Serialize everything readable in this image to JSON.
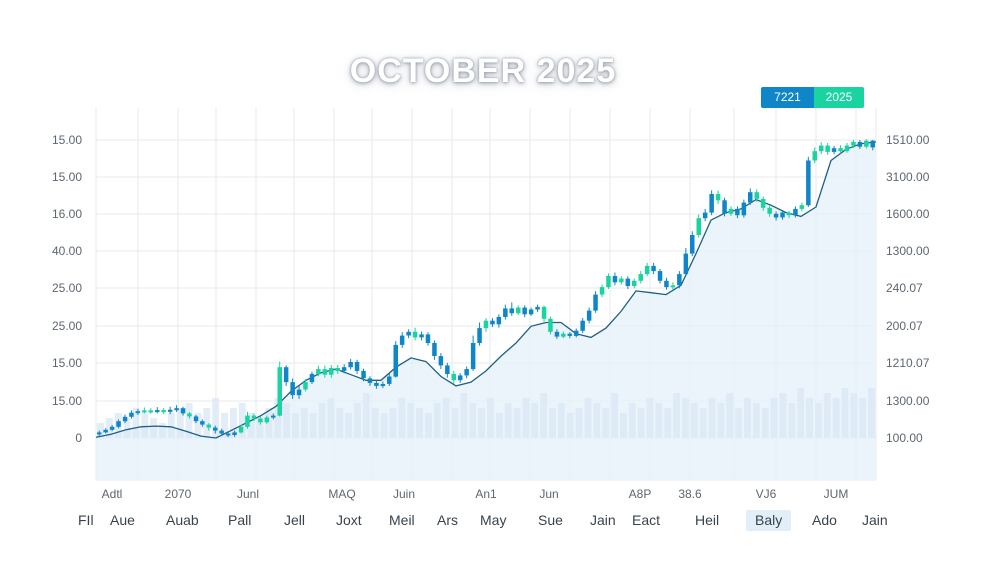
{
  "title": "OCTOBER 2025",
  "badges": [
    {
      "label": "7221",
      "color": "#0e86c8"
    },
    {
      "label": "2025",
      "color": "#19d3a0"
    }
  ],
  "chart_data": {
    "type": "candlestick",
    "title": "OCTOBER 2025",
    "left_axis_labels": [
      "15.00",
      "15.00",
      "16.00",
      "40.00",
      "25.00",
      "25.00",
      "15.00",
      "15.00",
      "0"
    ],
    "right_axis_labels": [
      "1510.00",
      "3100.00",
      "1600.00",
      "1300.00",
      "240.07",
      "200.07",
      "1210.07",
      "1300.00",
      "100.00"
    ],
    "x_axis_labels": [
      "Adtl",
      "2070",
      "Junl",
      "MAQ",
      "Juin",
      "An1",
      "Jun",
      "A8P",
      "38.6",
      "VJ6",
      "JUM"
    ],
    "y_range_left": [
      0,
      8
    ],
    "grid": true,
    "candles": [
      {
        "o": 0.1,
        "c": 0.15,
        "h": 0.2,
        "l": 0.05,
        "up": false
      },
      {
        "o": 0.15,
        "c": 0.22,
        "h": 0.26,
        "l": 0.12,
        "up": false
      },
      {
        "o": 0.22,
        "c": 0.3,
        "h": 0.35,
        "l": 0.18,
        "up": false
      },
      {
        "o": 0.3,
        "c": 0.45,
        "h": 0.5,
        "l": 0.26,
        "up": false
      },
      {
        "o": 0.45,
        "c": 0.57,
        "h": 0.63,
        "l": 0.4,
        "up": false
      },
      {
        "o": 0.57,
        "c": 0.68,
        "h": 0.74,
        "l": 0.52,
        "up": false
      },
      {
        "o": 0.68,
        "c": 0.72,
        "h": 0.78,
        "l": 0.62,
        "up": false
      },
      {
        "o": 0.72,
        "c": 0.74,
        "h": 0.82,
        "l": 0.66,
        "up": true
      },
      {
        "o": 0.74,
        "c": 0.72,
        "h": 0.8,
        "l": 0.65,
        "up": true
      },
      {
        "o": 0.72,
        "c": 0.75,
        "h": 0.83,
        "l": 0.66,
        "up": false
      },
      {
        "o": 0.75,
        "c": 0.7,
        "h": 0.8,
        "l": 0.64,
        "up": true
      },
      {
        "o": 0.7,
        "c": 0.76,
        "h": 0.84,
        "l": 0.64,
        "up": false
      },
      {
        "o": 0.76,
        "c": 0.8,
        "h": 0.88,
        "l": 0.7,
        "up": false
      },
      {
        "o": 0.8,
        "c": 0.66,
        "h": 0.84,
        "l": 0.6,
        "up": false
      },
      {
        "o": 0.66,
        "c": 0.58,
        "h": 0.7,
        "l": 0.52,
        "up": true
      },
      {
        "o": 0.58,
        "c": 0.45,
        "h": 0.62,
        "l": 0.4,
        "up": false
      },
      {
        "o": 0.45,
        "c": 0.36,
        "h": 0.5,
        "l": 0.3,
        "up": false
      },
      {
        "o": 0.36,
        "c": 0.28,
        "h": 0.4,
        "l": 0.2,
        "up": true
      },
      {
        "o": 0.28,
        "c": 0.2,
        "h": 0.33,
        "l": 0.12,
        "up": false
      },
      {
        "o": 0.2,
        "c": 0.12,
        "h": 0.25,
        "l": 0.06,
        "up": false
      },
      {
        "o": 0.12,
        "c": 0.08,
        "h": 0.16,
        "l": 0.02,
        "up": false
      },
      {
        "o": 0.08,
        "c": 0.15,
        "h": 0.2,
        "l": 0.03,
        "up": false
      },
      {
        "o": 0.15,
        "c": 0.3,
        "h": 0.35,
        "l": 0.12,
        "up": true
      },
      {
        "o": 0.3,
        "c": 0.6,
        "h": 0.7,
        "l": 0.25,
        "up": true
      },
      {
        "o": 0.6,
        "c": 0.52,
        "h": 0.66,
        "l": 0.46,
        "up": true
      },
      {
        "o": 0.52,
        "c": 0.42,
        "h": 0.58,
        "l": 0.36,
        "up": true
      },
      {
        "o": 0.42,
        "c": 0.55,
        "h": 0.6,
        "l": 0.38,
        "up": true
      },
      {
        "o": 0.55,
        "c": 0.6,
        "h": 0.66,
        "l": 0.5,
        "up": false
      },
      {
        "o": 0.6,
        "c": 1.9,
        "h": 2.05,
        "l": 0.58,
        "up": true
      },
      {
        "o": 1.9,
        "c": 1.5,
        "h": 1.95,
        "l": 1.4,
        "up": false
      },
      {
        "o": 1.5,
        "c": 1.15,
        "h": 1.6,
        "l": 1.05,
        "up": false
      },
      {
        "o": 1.15,
        "c": 1.3,
        "h": 1.4,
        "l": 1.05,
        "up": false
      },
      {
        "o": 1.3,
        "c": 1.5,
        "h": 1.58,
        "l": 1.25,
        "up": true
      },
      {
        "o": 1.5,
        "c": 1.72,
        "h": 1.78,
        "l": 1.45,
        "up": false
      },
      {
        "o": 1.72,
        "c": 1.85,
        "h": 1.94,
        "l": 1.66,
        "up": true
      },
      {
        "o": 1.85,
        "c": 1.7,
        "h": 1.95,
        "l": 1.62,
        "up": true
      },
      {
        "o": 1.7,
        "c": 1.88,
        "h": 1.96,
        "l": 1.62,
        "up": true
      },
      {
        "o": 1.88,
        "c": 1.8,
        "h": 1.96,
        "l": 1.72,
        "up": true
      },
      {
        "o": 1.8,
        "c": 1.9,
        "h": 1.98,
        "l": 1.74,
        "up": false
      },
      {
        "o": 1.9,
        "c": 2.04,
        "h": 2.12,
        "l": 1.84,
        "up": false
      },
      {
        "o": 2.04,
        "c": 1.8,
        "h": 2.1,
        "l": 1.72,
        "up": false
      },
      {
        "o": 1.8,
        "c": 1.6,
        "h": 1.86,
        "l": 1.52,
        "up": false
      },
      {
        "o": 1.6,
        "c": 1.48,
        "h": 1.66,
        "l": 1.4,
        "up": false
      },
      {
        "o": 1.48,
        "c": 1.4,
        "h": 1.54,
        "l": 1.32,
        "up": false
      },
      {
        "o": 1.4,
        "c": 1.45,
        "h": 1.52,
        "l": 1.34,
        "up": false
      },
      {
        "o": 1.45,
        "c": 1.65,
        "h": 1.72,
        "l": 1.4,
        "up": false
      },
      {
        "o": 1.65,
        "c": 2.5,
        "h": 2.6,
        "l": 1.62,
        "up": false
      },
      {
        "o": 2.5,
        "c": 2.75,
        "h": 2.84,
        "l": 2.42,
        "up": false
      },
      {
        "o": 2.75,
        "c": 2.85,
        "h": 2.92,
        "l": 2.68,
        "up": false
      },
      {
        "o": 2.85,
        "c": 2.7,
        "h": 2.96,
        "l": 2.62,
        "up": true
      },
      {
        "o": 2.7,
        "c": 2.78,
        "h": 2.86,
        "l": 2.62,
        "up": false
      },
      {
        "o": 2.78,
        "c": 2.55,
        "h": 2.84,
        "l": 2.48,
        "up": false
      },
      {
        "o": 2.55,
        "c": 2.2,
        "h": 2.62,
        "l": 2.1,
        "up": false
      },
      {
        "o": 2.2,
        "c": 1.95,
        "h": 2.28,
        "l": 1.85,
        "up": false
      },
      {
        "o": 1.95,
        "c": 1.72,
        "h": 2.02,
        "l": 1.62,
        "up": false
      },
      {
        "o": 1.72,
        "c": 1.55,
        "h": 1.8,
        "l": 1.45,
        "up": true
      },
      {
        "o": 1.55,
        "c": 1.68,
        "h": 1.74,
        "l": 1.48,
        "up": false
      },
      {
        "o": 1.68,
        "c": 1.85,
        "h": 1.92,
        "l": 1.6,
        "up": false
      },
      {
        "o": 1.85,
        "c": 2.55,
        "h": 2.75,
        "l": 1.8,
        "up": false
      },
      {
        "o": 2.55,
        "c": 2.95,
        "h": 3.1,
        "l": 2.48,
        "up": false
      },
      {
        "o": 2.95,
        "c": 3.15,
        "h": 3.22,
        "l": 2.85,
        "up": true
      },
      {
        "o": 3.15,
        "c": 3.05,
        "h": 3.22,
        "l": 2.98,
        "up": false
      },
      {
        "o": 3.05,
        "c": 3.25,
        "h": 3.32,
        "l": 2.96,
        "up": false
      },
      {
        "o": 3.25,
        "c": 3.48,
        "h": 3.58,
        "l": 3.18,
        "up": false
      },
      {
        "o": 3.48,
        "c": 3.35,
        "h": 3.64,
        "l": 3.28,
        "up": false
      },
      {
        "o": 3.35,
        "c": 3.5,
        "h": 3.56,
        "l": 3.3,
        "up": true
      },
      {
        "o": 3.5,
        "c": 3.32,
        "h": 3.56,
        "l": 3.24,
        "up": false
      },
      {
        "o": 3.32,
        "c": 3.45,
        "h": 3.5,
        "l": 3.28,
        "up": false
      },
      {
        "o": 3.45,
        "c": 3.52,
        "h": 3.58,
        "l": 3.38,
        "up": false
      },
      {
        "o": 3.52,
        "c": 3.2,
        "h": 3.56,
        "l": 3.12,
        "up": true
      },
      {
        "o": 3.2,
        "c": 2.85,
        "h": 3.26,
        "l": 2.78,
        "up": true
      },
      {
        "o": 2.85,
        "c": 2.72,
        "h": 2.92,
        "l": 2.66,
        "up": false
      },
      {
        "o": 2.72,
        "c": 2.8,
        "h": 2.86,
        "l": 2.68,
        "up": true
      },
      {
        "o": 2.8,
        "c": 2.74,
        "h": 2.84,
        "l": 2.68,
        "up": false
      },
      {
        "o": 2.74,
        "c": 2.88,
        "h": 2.94,
        "l": 2.7,
        "up": false
      },
      {
        "o": 2.88,
        "c": 3.15,
        "h": 3.22,
        "l": 2.82,
        "up": false
      },
      {
        "o": 3.15,
        "c": 3.42,
        "h": 3.5,
        "l": 3.08,
        "up": false
      },
      {
        "o": 3.42,
        "c": 3.85,
        "h": 3.94,
        "l": 3.36,
        "up": false
      },
      {
        "o": 3.85,
        "c": 4.05,
        "h": 4.12,
        "l": 3.78,
        "up": true
      },
      {
        "o": 4.05,
        "c": 4.35,
        "h": 4.42,
        "l": 4.0,
        "up": true
      },
      {
        "o": 4.35,
        "c": 4.18,
        "h": 4.44,
        "l": 4.1,
        "up": false
      },
      {
        "o": 4.18,
        "c": 4.28,
        "h": 4.34,
        "l": 4.12,
        "up": true
      },
      {
        "o": 4.28,
        "c": 4.08,
        "h": 4.34,
        "l": 4.0,
        "up": false
      },
      {
        "o": 4.08,
        "c": 4.22,
        "h": 4.28,
        "l": 4.02,
        "up": true
      },
      {
        "o": 4.22,
        "c": 4.4,
        "h": 4.48,
        "l": 4.15,
        "up": true
      },
      {
        "o": 4.4,
        "c": 4.62,
        "h": 4.7,
        "l": 4.34,
        "up": true
      },
      {
        "o": 4.62,
        "c": 4.48,
        "h": 4.7,
        "l": 4.4,
        "up": false
      },
      {
        "o": 4.48,
        "c": 4.22,
        "h": 4.54,
        "l": 4.15,
        "up": false
      },
      {
        "o": 4.22,
        "c": 4.05,
        "h": 4.3,
        "l": 3.98,
        "up": false
      },
      {
        "o": 4.05,
        "c": 4.1,
        "h": 4.18,
        "l": 3.98,
        "up": true
      },
      {
        "o": 4.1,
        "c": 4.4,
        "h": 4.48,
        "l": 4.02,
        "up": false
      },
      {
        "o": 4.4,
        "c": 4.95,
        "h": 5.1,
        "l": 4.35,
        "up": false
      },
      {
        "o": 4.95,
        "c": 5.45,
        "h": 5.55,
        "l": 4.88,
        "up": false
      },
      {
        "o": 5.45,
        "c": 5.9,
        "h": 6.0,
        "l": 5.38,
        "up": true
      },
      {
        "o": 5.9,
        "c": 6.05,
        "h": 6.15,
        "l": 5.82,
        "up": false
      },
      {
        "o": 6.05,
        "c": 6.55,
        "h": 6.65,
        "l": 5.98,
        "up": false
      },
      {
        "o": 6.55,
        "c": 6.38,
        "h": 6.64,
        "l": 6.28,
        "up": true
      },
      {
        "o": 6.38,
        "c": 6.02,
        "h": 6.45,
        "l": 5.95,
        "up": false
      },
      {
        "o": 6.02,
        "c": 6.15,
        "h": 6.22,
        "l": 5.96,
        "up": true
      },
      {
        "o": 6.15,
        "c": 5.98,
        "h": 6.22,
        "l": 5.9,
        "up": false
      },
      {
        "o": 5.98,
        "c": 6.32,
        "h": 6.4,
        "l": 5.92,
        "up": false
      },
      {
        "o": 6.32,
        "c": 6.6,
        "h": 6.7,
        "l": 6.26,
        "up": false
      },
      {
        "o": 6.6,
        "c": 6.42,
        "h": 6.68,
        "l": 6.34,
        "up": true
      },
      {
        "o": 6.42,
        "c": 6.18,
        "h": 6.48,
        "l": 6.1,
        "up": true
      },
      {
        "o": 6.18,
        "c": 6.02,
        "h": 6.24,
        "l": 5.94,
        "up": true
      },
      {
        "o": 6.02,
        "c": 5.92,
        "h": 6.08,
        "l": 5.84,
        "up": false
      },
      {
        "o": 5.92,
        "c": 6.05,
        "h": 6.12,
        "l": 5.86,
        "up": false
      },
      {
        "o": 6.05,
        "c": 5.98,
        "h": 6.1,
        "l": 5.9,
        "up": true
      },
      {
        "o": 5.98,
        "c": 6.15,
        "h": 6.22,
        "l": 5.92,
        "up": false
      },
      {
        "o": 6.15,
        "c": 6.25,
        "h": 6.32,
        "l": 6.08,
        "up": true
      },
      {
        "o": 6.25,
        "c": 7.45,
        "h": 7.55,
        "l": 6.2,
        "up": false
      },
      {
        "o": 7.45,
        "c": 7.7,
        "h": 7.8,
        "l": 7.38,
        "up": true
      },
      {
        "o": 7.7,
        "c": 7.85,
        "h": 7.94,
        "l": 7.62,
        "up": true
      },
      {
        "o": 7.85,
        "c": 7.68,
        "h": 7.92,
        "l": 7.6,
        "up": true
      },
      {
        "o": 7.68,
        "c": 7.78,
        "h": 7.84,
        "l": 7.62,
        "up": false
      },
      {
        "o": 7.78,
        "c": 7.7,
        "h": 7.86,
        "l": 7.64,
        "up": true
      },
      {
        "o": 7.7,
        "c": 7.85,
        "h": 7.92,
        "l": 7.66,
        "up": true
      },
      {
        "o": 7.85,
        "c": 7.95,
        "h": 8.0,
        "l": 7.78,
        "up": true
      },
      {
        "o": 7.95,
        "c": 7.82,
        "h": 8.0,
        "l": 7.76,
        "up": false
      },
      {
        "o": 7.82,
        "c": 7.98,
        "h": 8.02,
        "l": 7.78,
        "up": true
      },
      {
        "o": 7.98,
        "c": 7.8,
        "h": 8.0,
        "l": 7.72,
        "up": false
      }
    ],
    "trend_line": [
      0.02,
      0.1,
      0.22,
      0.3,
      0.32,
      0.3,
      0.18,
      0.05,
      0.0,
      0.2,
      0.4,
      0.6,
      0.85,
      1.25,
      1.55,
      1.75,
      1.85,
      1.7,
      1.55,
      1.55,
      1.9,
      2.15,
      2.05,
      1.65,
      1.4,
      1.5,
      1.8,
      2.2,
      2.55,
      3.0,
      3.1,
      3.1,
      2.8,
      2.7,
      2.95,
      3.4,
      3.95,
      3.9,
      3.85,
      4.1,
      4.95,
      5.85,
      6.05,
      6.15,
      6.4,
      6.25,
      6.05,
      5.95,
      6.2,
      7.45,
      7.75,
      7.9,
      7.95
    ],
    "volume": [
      0.3,
      0.4,
      0.5,
      0.4,
      0.6,
      0.5,
      0.4,
      0.3,
      0.5,
      0.6,
      0.7,
      0.5,
      0.6,
      0.8,
      0.5,
      0.6,
      0.7,
      0.5,
      0.4,
      0.6,
      0.8,
      0.7,
      0.5,
      0.6,
      0.5,
      0.7,
      0.8,
      0.6,
      0.5,
      0.7,
      0.9,
      0.6,
      0.5,
      0.6,
      0.8,
      0.7,
      0.6,
      0.5,
      0.7,
      0.8,
      0.6,
      0.9,
      0.7,
      0.6,
      0.8,
      0.5,
      0.7,
      0.6,
      0.8,
      0.7,
      0.9,
      0.6,
      0.7,
      0.5,
      0.6,
      0.8,
      0.7,
      0.6,
      0.9,
      0.5,
      0.7,
      0.6,
      0.8,
      0.7,
      0.6,
      0.9,
      0.8,
      0.7,
      0.6,
      0.8,
      0.7,
      0.9,
      0.6,
      0.8,
      0.7,
      0.6,
      0.8,
      0.9,
      0.7,
      1.0,
      0.8,
      0.7,
      0.9,
      0.8,
      1.0,
      0.9,
      0.8,
      1.0
    ]
  },
  "bottom_labels": [
    {
      "label": "FIl",
      "active": false
    },
    {
      "label": "Aue",
      "active": false
    },
    {
      "label": "Auab",
      "active": false
    },
    {
      "label": "Pall",
      "active": false
    },
    {
      "label": "Jell",
      "active": false
    },
    {
      "label": "Joxt",
      "active": false
    },
    {
      "label": "Meil",
      "active": false
    },
    {
      "label": "Ars",
      "active": false
    },
    {
      "label": "May",
      "active": false
    },
    {
      "label": "Sue",
      "active": false
    },
    {
      "label": "Jain",
      "active": false
    },
    {
      "label": "Eact",
      "active": false
    },
    {
      "label": "Heil",
      "active": false
    },
    {
      "label": "Baly",
      "active": true
    },
    {
      "label": "Ado",
      "active": false
    },
    {
      "label": "Jain",
      "active": false
    }
  ],
  "colors": {
    "up": "#19d3a0",
    "down": "#0e86c8",
    "trend": "#1f5f85",
    "area": "#e4f0fa",
    "grid": "#e6e9ee",
    "volume": "#dbe8f6"
  }
}
